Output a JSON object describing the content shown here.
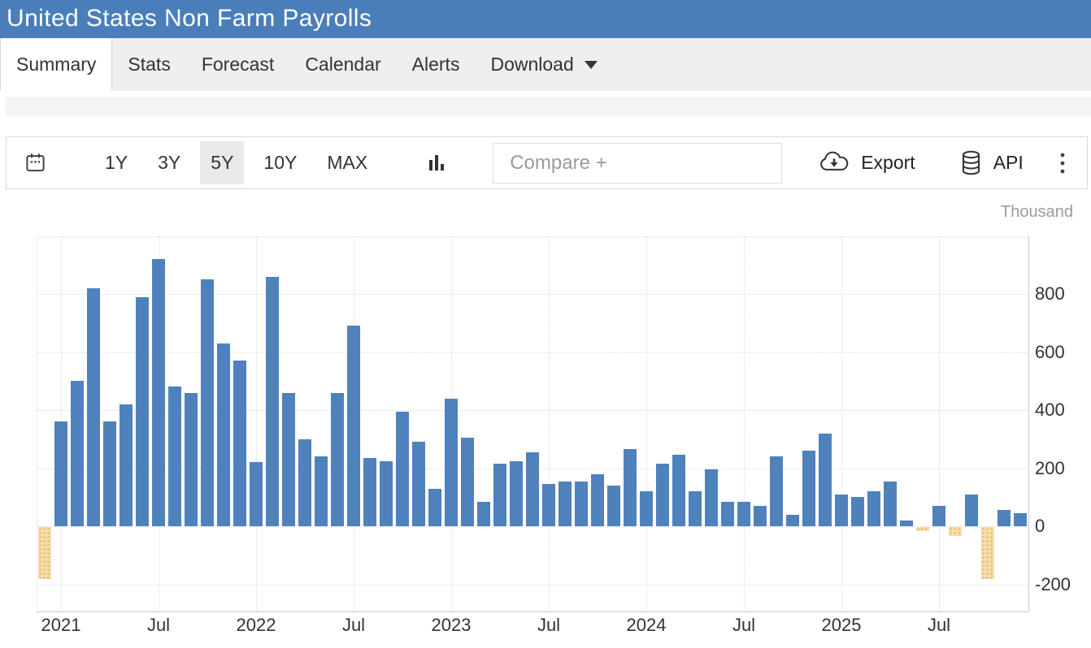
{
  "header": {
    "title": "United States Non Farm Payrolls"
  },
  "tabs": [
    {
      "label": "Summary",
      "active": true
    },
    {
      "label": "Stats",
      "active": false
    },
    {
      "label": "Forecast",
      "active": false
    },
    {
      "label": "Calendar",
      "active": false
    },
    {
      "label": "Alerts",
      "active": false
    },
    {
      "label": "Download",
      "active": false,
      "has_caret": true
    }
  ],
  "toolbar": {
    "ranges": [
      "1Y",
      "3Y",
      "5Y",
      "10Y",
      "MAX"
    ],
    "selected_range": "5Y",
    "compare_placeholder": "Compare +",
    "export_label": "Export",
    "api_label": "API",
    "icons": [
      "calendar-icon",
      "bar-chart-type-icon",
      "cloud-download-icon",
      "database-icon",
      "kebab-menu-icon"
    ]
  },
  "chart": {
    "unit_label": "Thousand",
    "colors": {
      "positive_bar": "#4f81bd",
      "negative_bar": "#f6dda9",
      "negative_dot": "#e0b269",
      "grid": "#dcdcdc",
      "axis": "#cccccc",
      "tick_text": "#333333",
      "unit_text": "#9b9b9b",
      "header_blue": "#4a7ebb"
    }
  },
  "chart_data": {
    "type": "bar",
    "title": "United States Non Farm Payrolls",
    "ylabel": "Thousand",
    "xlabel": "",
    "grid": true,
    "legend": false,
    "ylim": [
      -290,
      1000
    ],
    "y_ticks": [
      800,
      600,
      400,
      200,
      0,
      -200
    ],
    "grid_values": [
      1000,
      800,
      600,
      400,
      200,
      0,
      -200
    ],
    "x_ticks": [
      {
        "index": 1,
        "label": "2021"
      },
      {
        "index": 7,
        "label": "Jul"
      },
      {
        "index": 13,
        "label": "2022"
      },
      {
        "index": 19,
        "label": "Jul"
      },
      {
        "index": 25,
        "label": "2023"
      },
      {
        "index": 31,
        "label": "Jul"
      },
      {
        "index": 37,
        "label": "2024"
      },
      {
        "index": 43,
        "label": "Jul"
      },
      {
        "index": 49,
        "label": "2025"
      },
      {
        "index": 55,
        "label": "Jul"
      }
    ],
    "categories": [
      "Dec 2020",
      "Jan 2021",
      "Feb 2021",
      "Mar 2021",
      "Apr 2021",
      "May 2021",
      "Jun 2021",
      "Jul 2021",
      "Aug 2021",
      "Sep 2021",
      "Oct 2021",
      "Nov 2021",
      "Dec 2021",
      "Jan 2022",
      "Feb 2022",
      "Mar 2022",
      "Apr 2022",
      "May 2022",
      "Jun 2022",
      "Jul 2022",
      "Aug 2022",
      "Sep 2022",
      "Oct 2022",
      "Nov 2022",
      "Dec 2022",
      "Jan 2023",
      "Feb 2023",
      "Mar 2023",
      "Apr 2023",
      "May 2023",
      "Jun 2023",
      "Jul 2023",
      "Aug 2023",
      "Sep 2023",
      "Oct 2023",
      "Nov 2023",
      "Dec 2023",
      "Jan 2024",
      "Feb 2024",
      "Mar 2024",
      "Apr 2024",
      "May 2024",
      "Jun 2024",
      "Jul 2024",
      "Aug 2024",
      "Sep 2024",
      "Oct 2024",
      "Nov 2024",
      "Dec 2024",
      "Jan 2025",
      "Feb 2025",
      "Mar 2025",
      "Apr 2025",
      "May 2025",
      "Jun 2025",
      "Jul 2025",
      "Aug 2025",
      "Sep 2025",
      "Oct 2025",
      "Nov 2025",
      "Dec 2025"
    ],
    "values": [
      -180,
      360,
      500,
      820,
      360,
      420,
      790,
      920,
      480,
      460,
      850,
      630,
      570,
      220,
      860,
      460,
      300,
      240,
      460,
      690,
      235,
      225,
      395,
      290,
      130,
      440,
      305,
      85,
      215,
      225,
      255,
      145,
      155,
      155,
      180,
      140,
      265,
      120,
      215,
      245,
      120,
      195,
      85,
      85,
      70,
      240,
      40,
      260,
      320,
      110,
      100,
      120,
      155,
      20,
      -15,
      70,
      -30,
      110,
      -180,
      55,
      45
    ]
  }
}
